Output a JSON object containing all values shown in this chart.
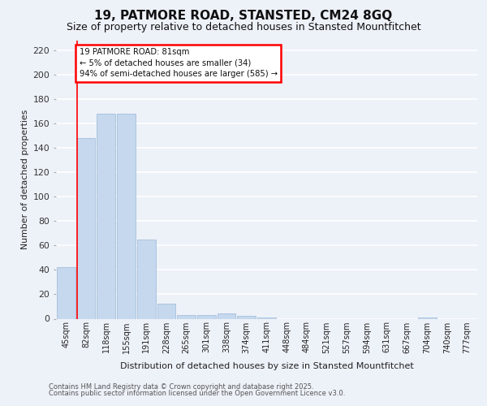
{
  "title": "19, PATMORE ROAD, STANSTED, CM24 8GQ",
  "subtitle": "Size of property relative to detached houses in Stansted Mountfitchet",
  "xlabel": "Distribution of detached houses by size in Stansted Mountfitchet",
  "ylabel": "Number of detached properties",
  "categories": [
    "45sqm",
    "82sqm",
    "118sqm",
    "155sqm",
    "191sqm",
    "228sqm",
    "265sqm",
    "301sqm",
    "338sqm",
    "374sqm",
    "411sqm",
    "448sqm",
    "484sqm",
    "521sqm",
    "557sqm",
    "594sqm",
    "631sqm",
    "667sqm",
    "704sqm",
    "740sqm",
    "777sqm"
  ],
  "values": [
    42,
    148,
    168,
    168,
    65,
    12,
    3,
    3,
    4,
    2,
    1,
    0,
    0,
    0,
    0,
    0,
    0,
    0,
    1,
    0,
    0
  ],
  "bar_color": "#c5d8ee",
  "bar_edge_color": "#9ab8d8",
  "red_line_index": 1,
  "annotation_line1": "19 PATMORE ROAD: 81sqm",
  "annotation_line2": "← 5% of detached houses are smaller (34)",
  "annotation_line3": "94% of semi-detached houses are larger (585) →",
  "ylim": [
    0,
    228
  ],
  "yticks": [
    0,
    20,
    40,
    60,
    80,
    100,
    120,
    140,
    160,
    180,
    200,
    220
  ],
  "footer_line1": "Contains HM Land Registry data © Crown copyright and database right 2025.",
  "footer_line2": "Contains public sector information licensed under the Open Government Licence v3.0.",
  "title_fontsize": 11,
  "subtitle_fontsize": 9,
  "bg_color": "#edf1f8",
  "plot_bg_color": "#edf1f8",
  "grid_color": "#ffffff"
}
